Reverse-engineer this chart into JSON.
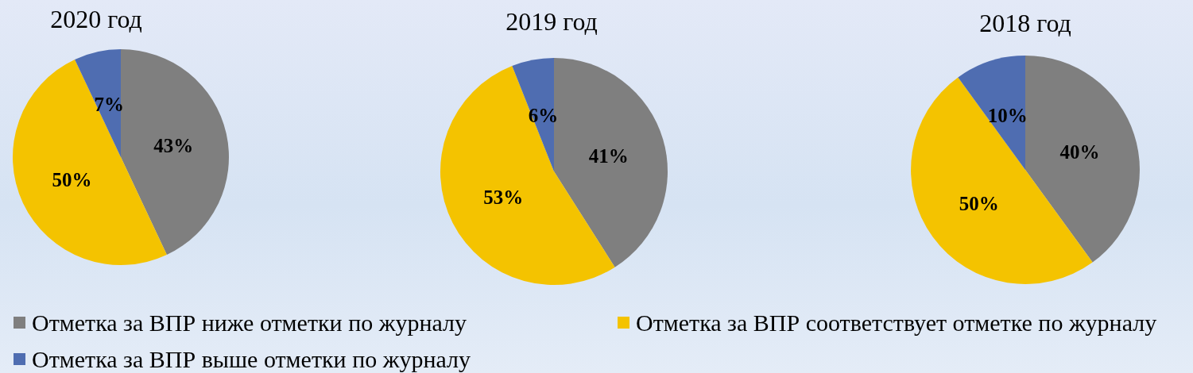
{
  "chart_data": [
    {
      "type": "pie",
      "title": "2020 год",
      "categories": [
        "Отметка за ВПР ниже отметки по журналу",
        "Отметка за ВПР соответствует отметке по журналу",
        "Отметка за ВПР выше отметки по журналу"
      ],
      "values": [
        43,
        50,
        7
      ],
      "colors": [
        "#7f7f7f",
        "#f4c300",
        "#4f6db1"
      ],
      "value_labels": [
        "43%",
        "50%",
        "7%"
      ],
      "legend": "bottom"
    },
    {
      "type": "pie",
      "title": "2019 год",
      "values": [
        41,
        53,
        6
      ],
      "colors": [
        "#7f7f7f",
        "#f4c300",
        "#4f6db1"
      ],
      "value_labels": [
        "41%",
        "53%",
        "6%"
      ]
    },
    {
      "type": "pie",
      "title": "2018 год",
      "values": [
        40,
        50,
        10
      ],
      "colors": [
        "#7f7f7f",
        "#f4c300",
        "#4f6db1"
      ],
      "value_labels": [
        "40%",
        "50%",
        "10%"
      ]
    }
  ]
}
